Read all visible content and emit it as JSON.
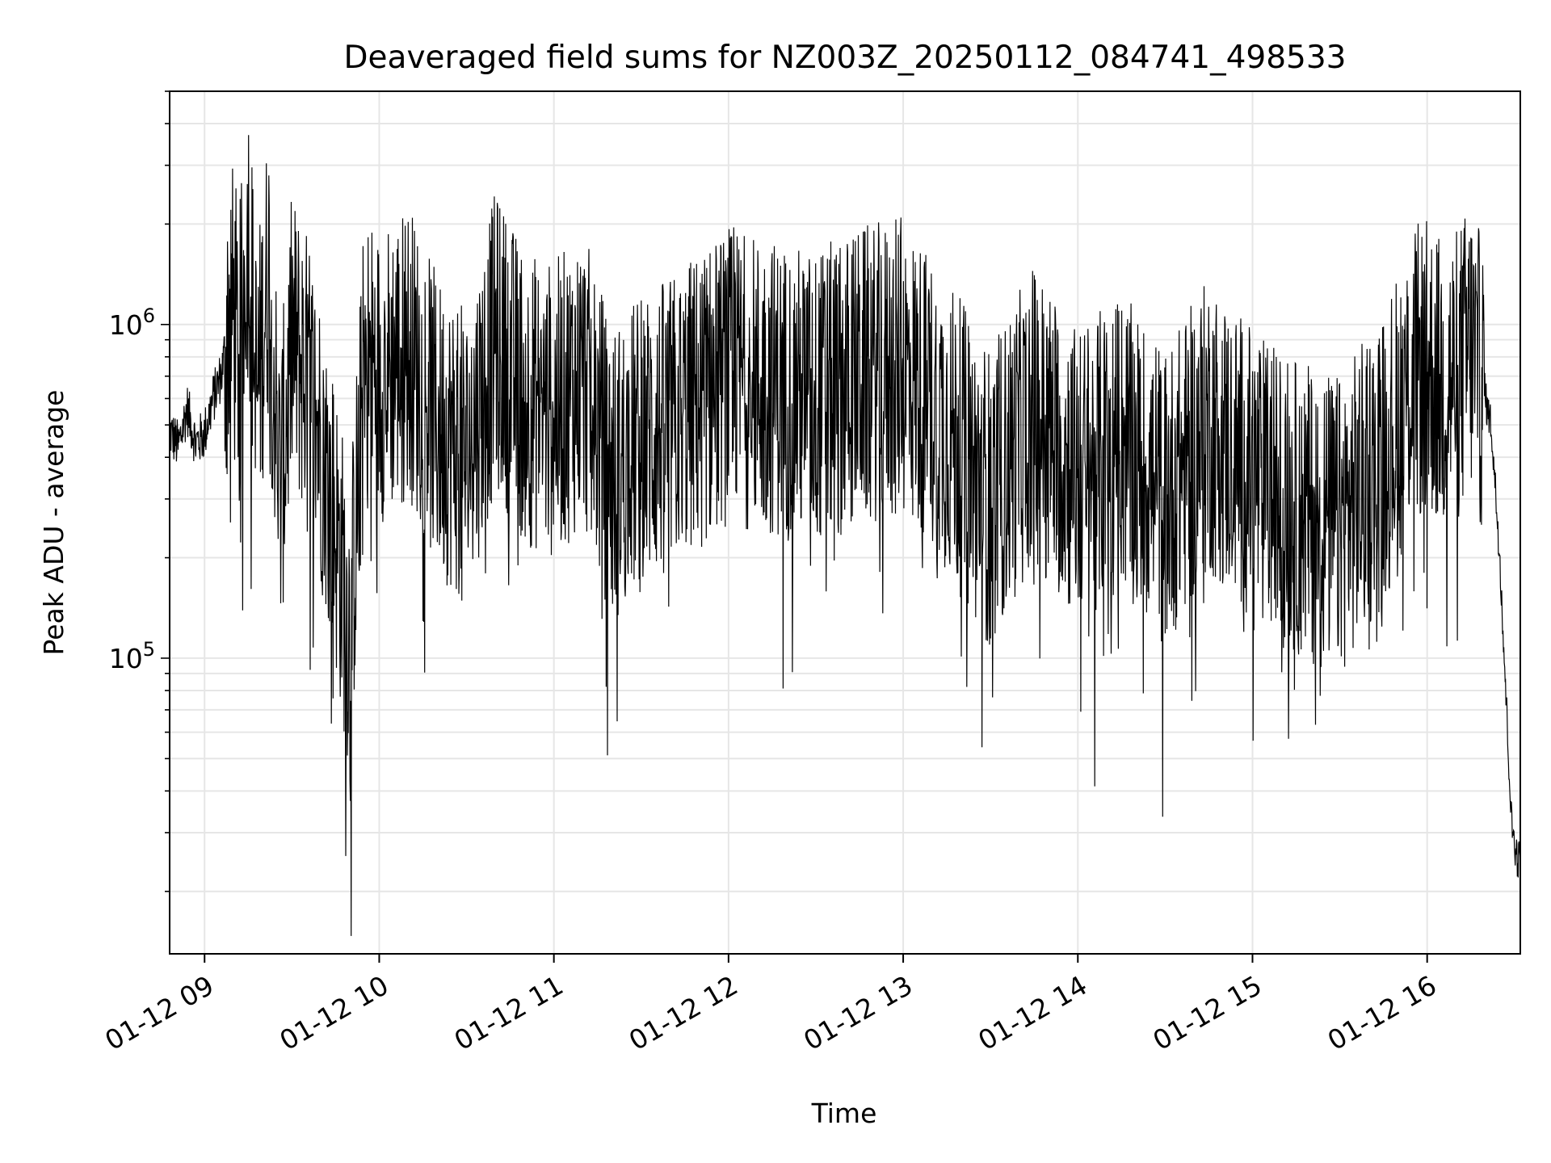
{
  "chart_data": {
    "type": "line",
    "title": "Deaveraged field sums for NZ003Z_20250112_084741_498533",
    "xlabel": "Time",
    "ylabel": "Peak ADU - average",
    "y_scale": "log",
    "xlim": [
      "2025-01-12 08:48",
      "2025-01-12 16:32"
    ],
    "ylim": [
      13000,
      5000000
    ],
    "x_ticks": [
      {
        "value": "2025-01-12 09:00",
        "label": "01-12 09"
      },
      {
        "value": "2025-01-12 10:00",
        "label": "01-12 10"
      },
      {
        "value": "2025-01-12 11:00",
        "label": "01-12 11"
      },
      {
        "value": "2025-01-12 12:00",
        "label": "01-12 12"
      },
      {
        "value": "2025-01-12 13:00",
        "label": "01-12 13"
      },
      {
        "value": "2025-01-12 14:00",
        "label": "01-12 14"
      },
      {
        "value": "2025-01-12 15:00",
        "label": "01-12 15"
      },
      {
        "value": "2025-01-12 16:00",
        "label": "01-12 16"
      }
    ],
    "y_ticks": [
      {
        "value": 100000,
        "base": "10",
        "exponent": "5"
      },
      {
        "value": 1000000,
        "base": "10",
        "exponent": "6"
      }
    ],
    "grid": true,
    "grid_color": "#e6e6e6",
    "line_color": "#000000",
    "series": [
      {
        "x": [
          "2025-01-12 08:48",
          "2025-01-12 08:51",
          "2025-01-12 08:54",
          "2025-01-12 08:57",
          "2025-01-12 09:00",
          "2025-01-12 09:03",
          "2025-01-12 09:06",
          "2025-01-12 09:09",
          "2025-01-12 09:12",
          "2025-01-12 09:15",
          "2025-01-12 09:18",
          "2025-01-12 09:22",
          "2025-01-12 09:26",
          "2025-01-12 09:30",
          "2025-01-12 09:35",
          "2025-01-12 09:40",
          "2025-01-12 09:45",
          "2025-01-12 09:50",
          "2025-01-12 09:55",
          "2025-01-12 10:00",
          "2025-01-12 10:10",
          "2025-01-12 10:20",
          "2025-01-12 10:30",
          "2025-01-12 10:40",
          "2025-01-12 10:50",
          "2025-01-12 11:00",
          "2025-01-12 11:10",
          "2025-01-12 11:20",
          "2025-01-12 11:30",
          "2025-01-12 11:40",
          "2025-01-12 11:50",
          "2025-01-12 12:00",
          "2025-01-12 12:15",
          "2025-01-12 12:30",
          "2025-01-12 12:45",
          "2025-01-12 13:00",
          "2025-01-12 13:15",
          "2025-01-12 13:30",
          "2025-01-12 13:45",
          "2025-01-12 14:00",
          "2025-01-12 14:15",
          "2025-01-12 14:30",
          "2025-01-12 14:45",
          "2025-01-12 15:00",
          "2025-01-12 15:15",
          "2025-01-12 15:30",
          "2025-01-12 15:45",
          "2025-01-12 15:55",
          "2025-01-12 16:00",
          "2025-01-12 16:05",
          "2025-01-12 16:10",
          "2025-01-12 16:15",
          "2025-01-12 16:19",
          "2025-01-12 16:22",
          "2025-01-12 16:25",
          "2025-01-12 16:27",
          "2025-01-12 16:29",
          "2025-01-12 16:31"
        ],
        "values": [
          480000,
          430000,
          560000,
          440000,
          470000,
          600000,
          720000,
          1200000,
          800000,
          2000000,
          600000,
          1500000,
          300000,
          900000,
          700000,
          450000,
          250000,
          120000,
          800000,
          700000,
          850000,
          500000,
          400000,
          900000,
          600000,
          550000,
          700000,
          350000,
          450000,
          500000,
          600000,
          700000,
          650000,
          600000,
          700000,
          750000,
          500000,
          300000,
          550000,
          350000,
          450000,
          300000,
          500000,
          350000,
          280000,
          250000,
          400000,
          700000,
          750000,
          650000,
          700000,
          850000,
          650000,
          500000,
          200000,
          80000,
          32000,
          25000
        ]
      }
    ]
  }
}
